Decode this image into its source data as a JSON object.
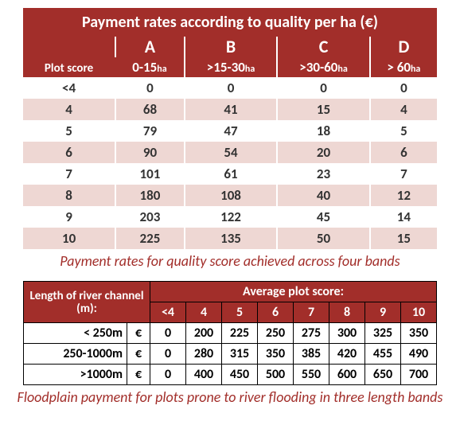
{
  "table1": {
    "title": "Payment rates according to quality per ha (€)",
    "plot_score_label": "Plot score",
    "bands": [
      {
        "letter": "A",
        "range": "0-15"
      },
      {
        "letter": "B",
        "range": ">15-30"
      },
      {
        "letter": "C",
        "range": ">30-60"
      },
      {
        "letter": "D",
        "range": "> 60"
      }
    ],
    "ha_suffix": "ha",
    "rows": [
      {
        "score": "<4",
        "v": [
          "0",
          "0",
          "0",
          "0"
        ]
      },
      {
        "score": "4",
        "v": [
          "68",
          "41",
          "15",
          "4"
        ]
      },
      {
        "score": "5",
        "v": [
          "79",
          "47",
          "18",
          "5"
        ]
      },
      {
        "score": "6",
        "v": [
          "90",
          "54",
          "20",
          "6"
        ]
      },
      {
        "score": "7",
        "v": [
          "101",
          "61",
          "23",
          "7"
        ]
      },
      {
        "score": "8",
        "v": [
          "180",
          "108",
          "40",
          "12"
        ]
      },
      {
        "score": "9",
        "v": [
          "203",
          "122",
          "45",
          "14"
        ]
      },
      {
        "score": "10",
        "v": [
          "225",
          "135",
          "50",
          "15"
        ]
      }
    ],
    "caption": "Payment rates for quality score achieved across four bands"
  },
  "table2": {
    "row_header": "Length of river channel (m):",
    "col_header": "Average plot score:",
    "currency": "€",
    "scores": [
      "<4",
      "4",
      "5",
      "6",
      "7",
      "8",
      "9",
      "10"
    ],
    "rows": [
      {
        "label": "< 250m",
        "v": [
          "0",
          "200",
          "225",
          "250",
          "275",
          "300",
          "325",
          "350"
        ]
      },
      {
        "label": "250-1000m",
        "v": [
          "0",
          "280",
          "315",
          "350",
          "385",
          "420",
          "455",
          "490"
        ]
      },
      {
        "label": ">1000m",
        "v": [
          "0",
          "400",
          "450",
          "500",
          "550",
          "600",
          "650",
          "700"
        ]
      }
    ],
    "caption": "Floodplain payment for plots prone to river flooding in three length bands"
  },
  "colors": {
    "header_bg": "#a22e2a",
    "header_fg": "#ffffff",
    "row_alt_bg": "#eed7d3",
    "caption_color": "#a22e2a"
  }
}
